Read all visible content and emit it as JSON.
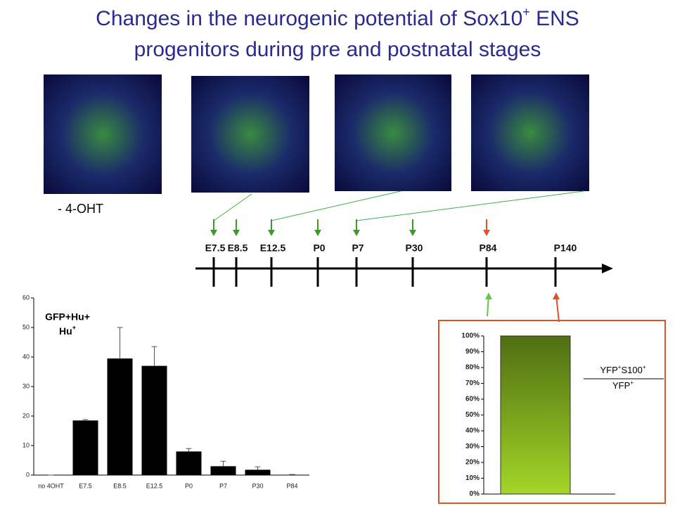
{
  "title": {
    "line1": "Changes in the neurogenic potential of Sox10",
    "line1_sup": "+",
    "line1_end": " ENS",
    "line2": "progenitors during pre and postnatal stages"
  },
  "image_label": "- 4-OHT",
  "timeline": {
    "labels": [
      "E7.5",
      "E8.5",
      "E12.5",
      "P0",
      "P7",
      "P30",
      "P84",
      "P140"
    ]
  },
  "chart_data": [
    {
      "type": "bar",
      "label_numerator": "GFP+Hu+",
      "label_denominator": "Hu",
      "label_denominator_sup": "+",
      "categories": [
        "no 4OHT",
        "E7.5",
        "E8.5",
        "E12.5",
        "P0",
        "P7",
        "P30",
        "P84"
      ],
      "values": [
        0,
        18.5,
        39.5,
        37,
        8,
        3,
        1.8,
        0
      ],
      "errors": [
        0,
        0.3,
        10.5,
        6.5,
        1,
        1.7,
        1,
        0.2
      ],
      "color": "#000000",
      "ylim": [
        0,
        60
      ],
      "yticks": [
        0,
        10,
        20,
        30,
        40,
        50,
        60
      ]
    },
    {
      "type": "bar",
      "ratio_numerator": [
        "YFP",
        "+",
        "S100",
        "+"
      ],
      "ratio_denominator": [
        "YFP",
        "+"
      ],
      "categories": [
        null
      ],
      "values": [
        100
      ],
      "color": "#7fae1a",
      "ylim": [
        0,
        100
      ],
      "yticks": [
        {
          "value": 0,
          "label": "0%"
        },
        {
          "value": 10,
          "label": "10%"
        },
        {
          "value": 20,
          "label": "20%"
        },
        {
          "value": 30,
          "label": "30%"
        },
        {
          "value": 40,
          "label": "40%"
        },
        {
          "value": 50,
          "label": "50%"
        },
        {
          "value": 60,
          "label": "60%"
        },
        {
          "value": 70,
          "label": "70%"
        },
        {
          "value": 80,
          "label": "80%"
        },
        {
          "value": 90,
          "label": "90%"
        },
        {
          "value": 100,
          "label": "100%"
        }
      ]
    }
  ]
}
